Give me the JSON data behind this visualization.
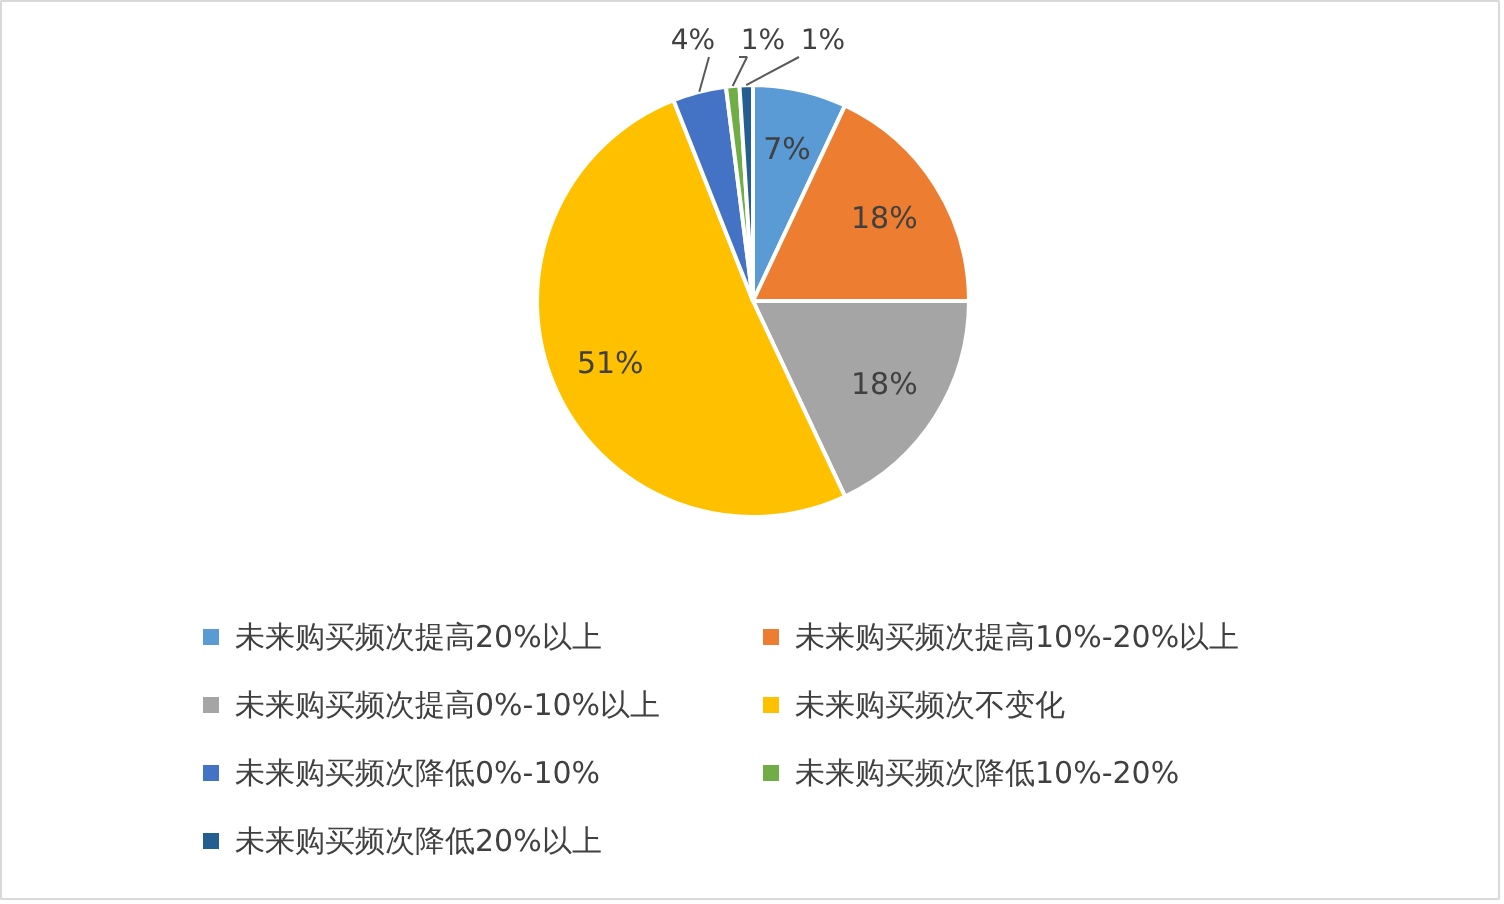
{
  "chart_data": {
    "type": "pie",
    "categories": [
      "未来购买频次提高20%以上",
      "未来购买频次提高10%-20%以上",
      "未来购买频次提高0%-10%以上",
      "未来购买频次不变化",
      "未来购买频次降低0%-10%",
      "未来购买频次降低10%-20%",
      "未来购买频次降低20%以上"
    ],
    "values": [
      7,
      18,
      18,
      51,
      4,
      1,
      1
    ],
    "colors": [
      "#5b9bd5",
      "#ed7d31",
      "#a5a5a5",
      "#ffc000",
      "#4472c4",
      "#70ad47",
      "#255e91"
    ],
    "value_labels": [
      "7%",
      "18%",
      "18%",
      "51%",
      "4%",
      "1%",
      "1%"
    ],
    "legend": "bottom"
  }
}
